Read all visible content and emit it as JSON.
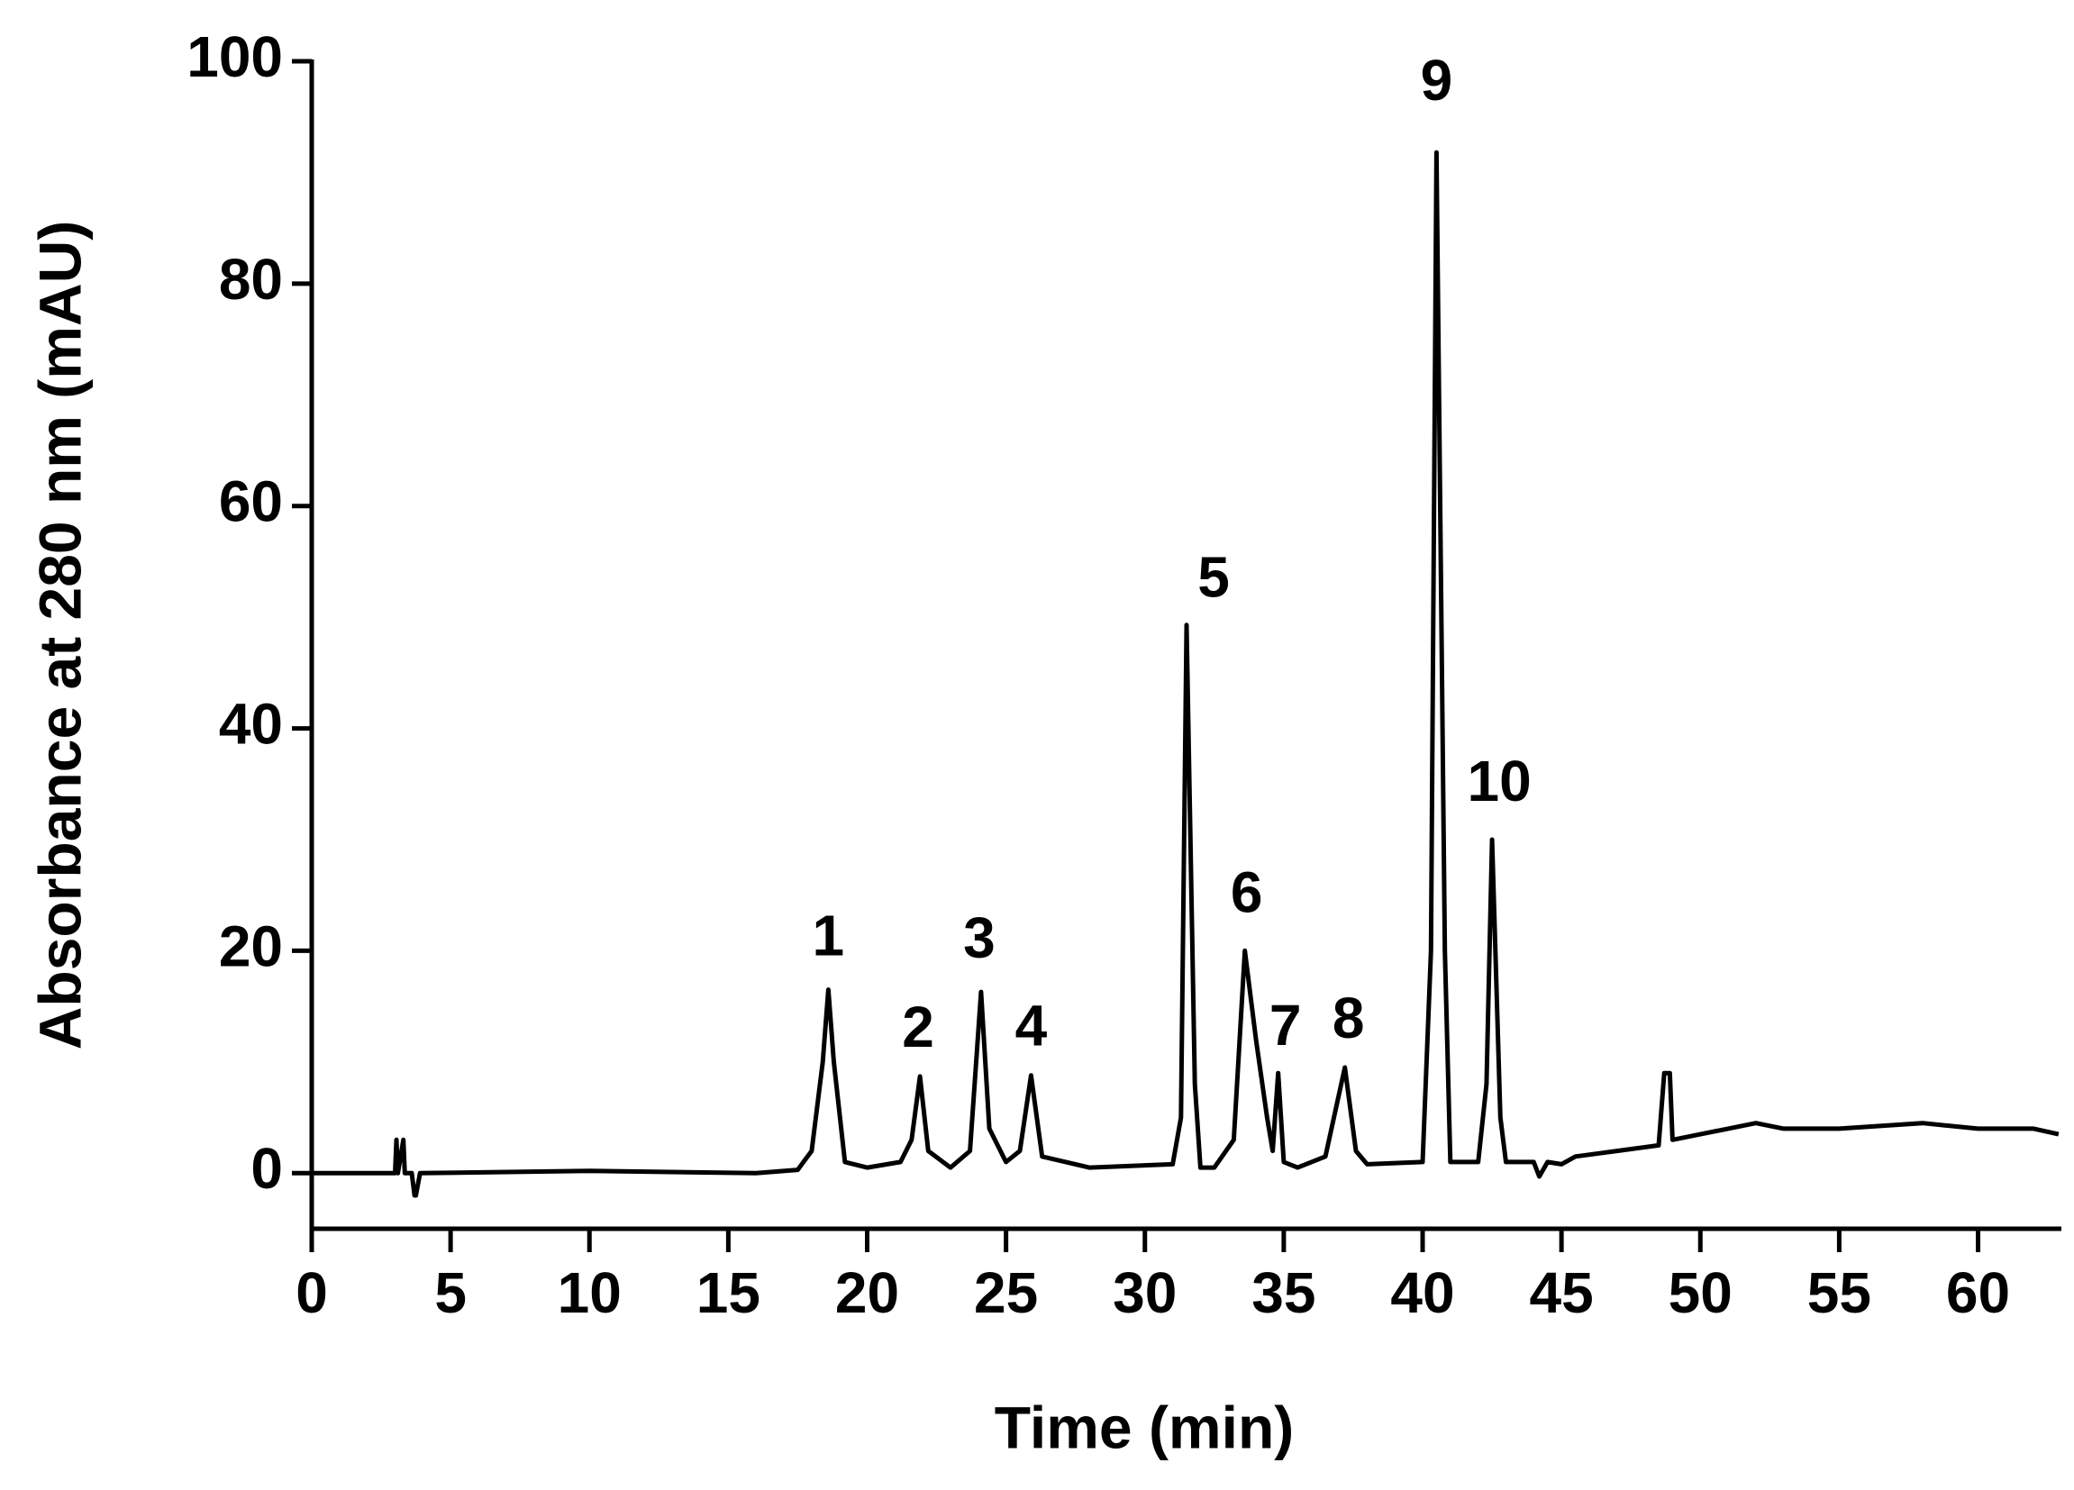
{
  "chart_data": {
    "type": "line",
    "xlabel": "Time (min)",
    "ylabel": "Absorbance at 280 nm (mAU)",
    "annotations": [
      "1",
      "2",
      "3",
      "4",
      "5",
      "6",
      "7",
      "8",
      "9",
      "10"
    ],
    "x": [
      0,
      3.0,
      3.05,
      3.1,
      3.3,
      3.35,
      3.6,
      3.7,
      3.75,
      3.9,
      10,
      16,
      17.5,
      18.0,
      18.4,
      18.6,
      18.8,
      19.2,
      20,
      21.2,
      21.6,
      21.9,
      22.2,
      23.0,
      23.7,
      24.1,
      24.4,
      25.0,
      25.5,
      25.9,
      26.3,
      28,
      31,
      31.3,
      31.5,
      31.8,
      32.0,
      32.5,
      33.2,
      33.6,
      34.0,
      34.4,
      34.6,
      34.8,
      35.0,
      35.5,
      36.5,
      37.2,
      37.6,
      38,
      40.0,
      40.3,
      40.5,
      40.8,
      41.0,
      42.0,
      42.3,
      42.5,
      42.8,
      43.0,
      44,
      44.2,
      44.5,
      45,
      45.5,
      47,
      48.5,
      48.7,
      48.9,
      49.0,
      50,
      51,
      52,
      53,
      55,
      58,
      60,
      62,
      62.9
    ],
    "series": [
      {
        "color": "#000000",
        "values": [
          0,
          0,
          3,
          0,
          3,
          0,
          0,
          -2,
          -2,
          0,
          0.2,
          0,
          0.3,
          2,
          10,
          16.5,
          10,
          1,
          0.5,
          1,
          3,
          8.7,
          2,
          0.5,
          2,
          16.3,
          4,
          1,
          2,
          8.8,
          1.5,
          0.5,
          0.8,
          5,
          49.3,
          8,
          0.5,
          0.5,
          3,
          20,
          12,
          5,
          2,
          9,
          1,
          0.5,
          1.5,
          9.5,
          2,
          0.8,
          1,
          20,
          91.8,
          20,
          1,
          1,
          8,
          30,
          5,
          1,
          1,
          -0.3,
          1,
          0.8,
          1.5,
          2,
          2.5,
          9,
          9,
          3,
          3.5,
          4,
          4.5,
          4,
          4,
          4.5,
          4,
          4,
          3.5
        ]
      }
    ],
    "xlim": [
      0,
      63
    ],
    "xticks": [
      0,
      5,
      10,
      15,
      20,
      25,
      30,
      35,
      40,
      45,
      50,
      55,
      60
    ],
    "ylim": [
      -5,
      100
    ],
    "yticks": [
      0,
      20,
      40,
      60,
      80,
      100
    ],
    "grid": false
  }
}
